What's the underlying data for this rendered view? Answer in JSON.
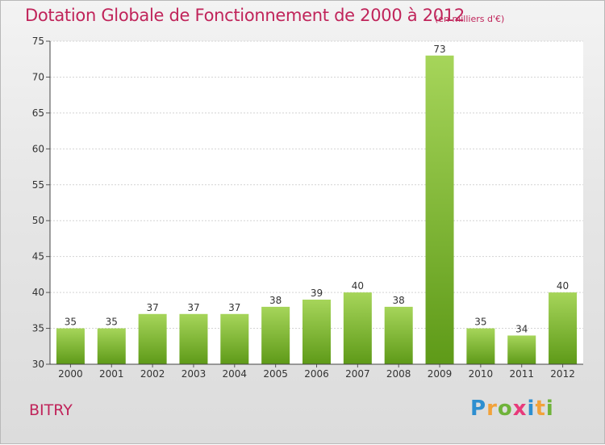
{
  "header": {
    "title": "Dotation Globale de Fonctionnement de 2000 à 2012",
    "subtitle": "(en milliers d'€)"
  },
  "footer": {
    "commune": "BITRY",
    "logo_text": "Proxiti"
  },
  "colors": {
    "title": "#c0245a",
    "bar_top": "#a6d55a",
    "bar_bottom": "#5e9a18"
  },
  "chart_data": {
    "type": "bar",
    "title": "Dotation Globale de Fonctionnement de 2000 à 2012",
    "subtitle": "(en milliers d'€)",
    "xlabel": "",
    "ylabel": "",
    "categories": [
      "2000",
      "2001",
      "2002",
      "2003",
      "2004",
      "2005",
      "2006",
      "2007",
      "2008",
      "2009",
      "2010",
      "2011",
      "2012"
    ],
    "values": [
      35,
      35,
      37,
      37,
      37,
      38,
      39,
      40,
      38,
      73,
      35,
      34,
      40
    ],
    "ylim": [
      30,
      75
    ],
    "yticks": [
      30,
      35,
      40,
      45,
      50,
      55,
      60,
      65,
      70,
      75
    ],
    "grid": true,
    "data_labels": true
  }
}
